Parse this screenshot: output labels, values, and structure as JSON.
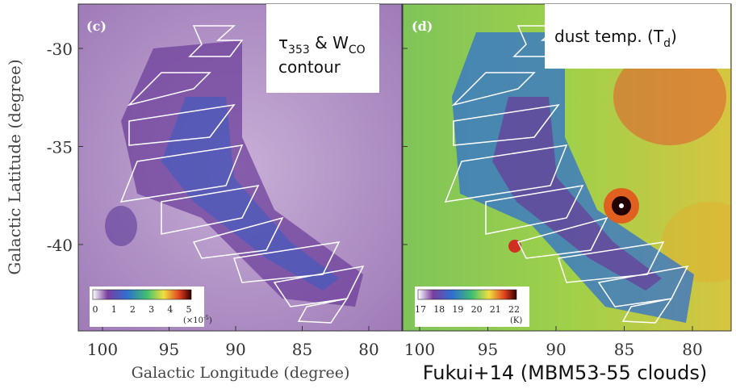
{
  "y_axis_label": "Galactic Latitude (degree)",
  "x_axis_label": "Galactic Longitude (degree)",
  "yticks": [
    -30,
    -35,
    -40
  ],
  "panels": [
    {
      "label": "(c)",
      "xticks": [
        100,
        95,
        90,
        85,
        80
      ],
      "annotation": {
        "line1": [
          "τ",
          "353",
          " & W",
          "CO"
        ],
        "line2": "contour"
      },
      "colorbar": {
        "ticks": [
          0,
          1,
          2,
          3,
          4,
          5
        ],
        "unit": [
          "(×10",
          "-5",
          ")"
        ]
      }
    },
    {
      "label": "(d)",
      "xticks": [
        100,
        95,
        90,
        85,
        80
      ],
      "annotation": {
        "line1": [
          "dust temp.  (T",
          "d",
          ")"
        ]
      },
      "colorbar": {
        "ticks": [
          17,
          18,
          19,
          20,
          21,
          22
        ],
        "unit": [
          "(K)"
        ]
      }
    }
  ],
  "caption": "Fukui+14 (MBM53-55 clouds)"
}
